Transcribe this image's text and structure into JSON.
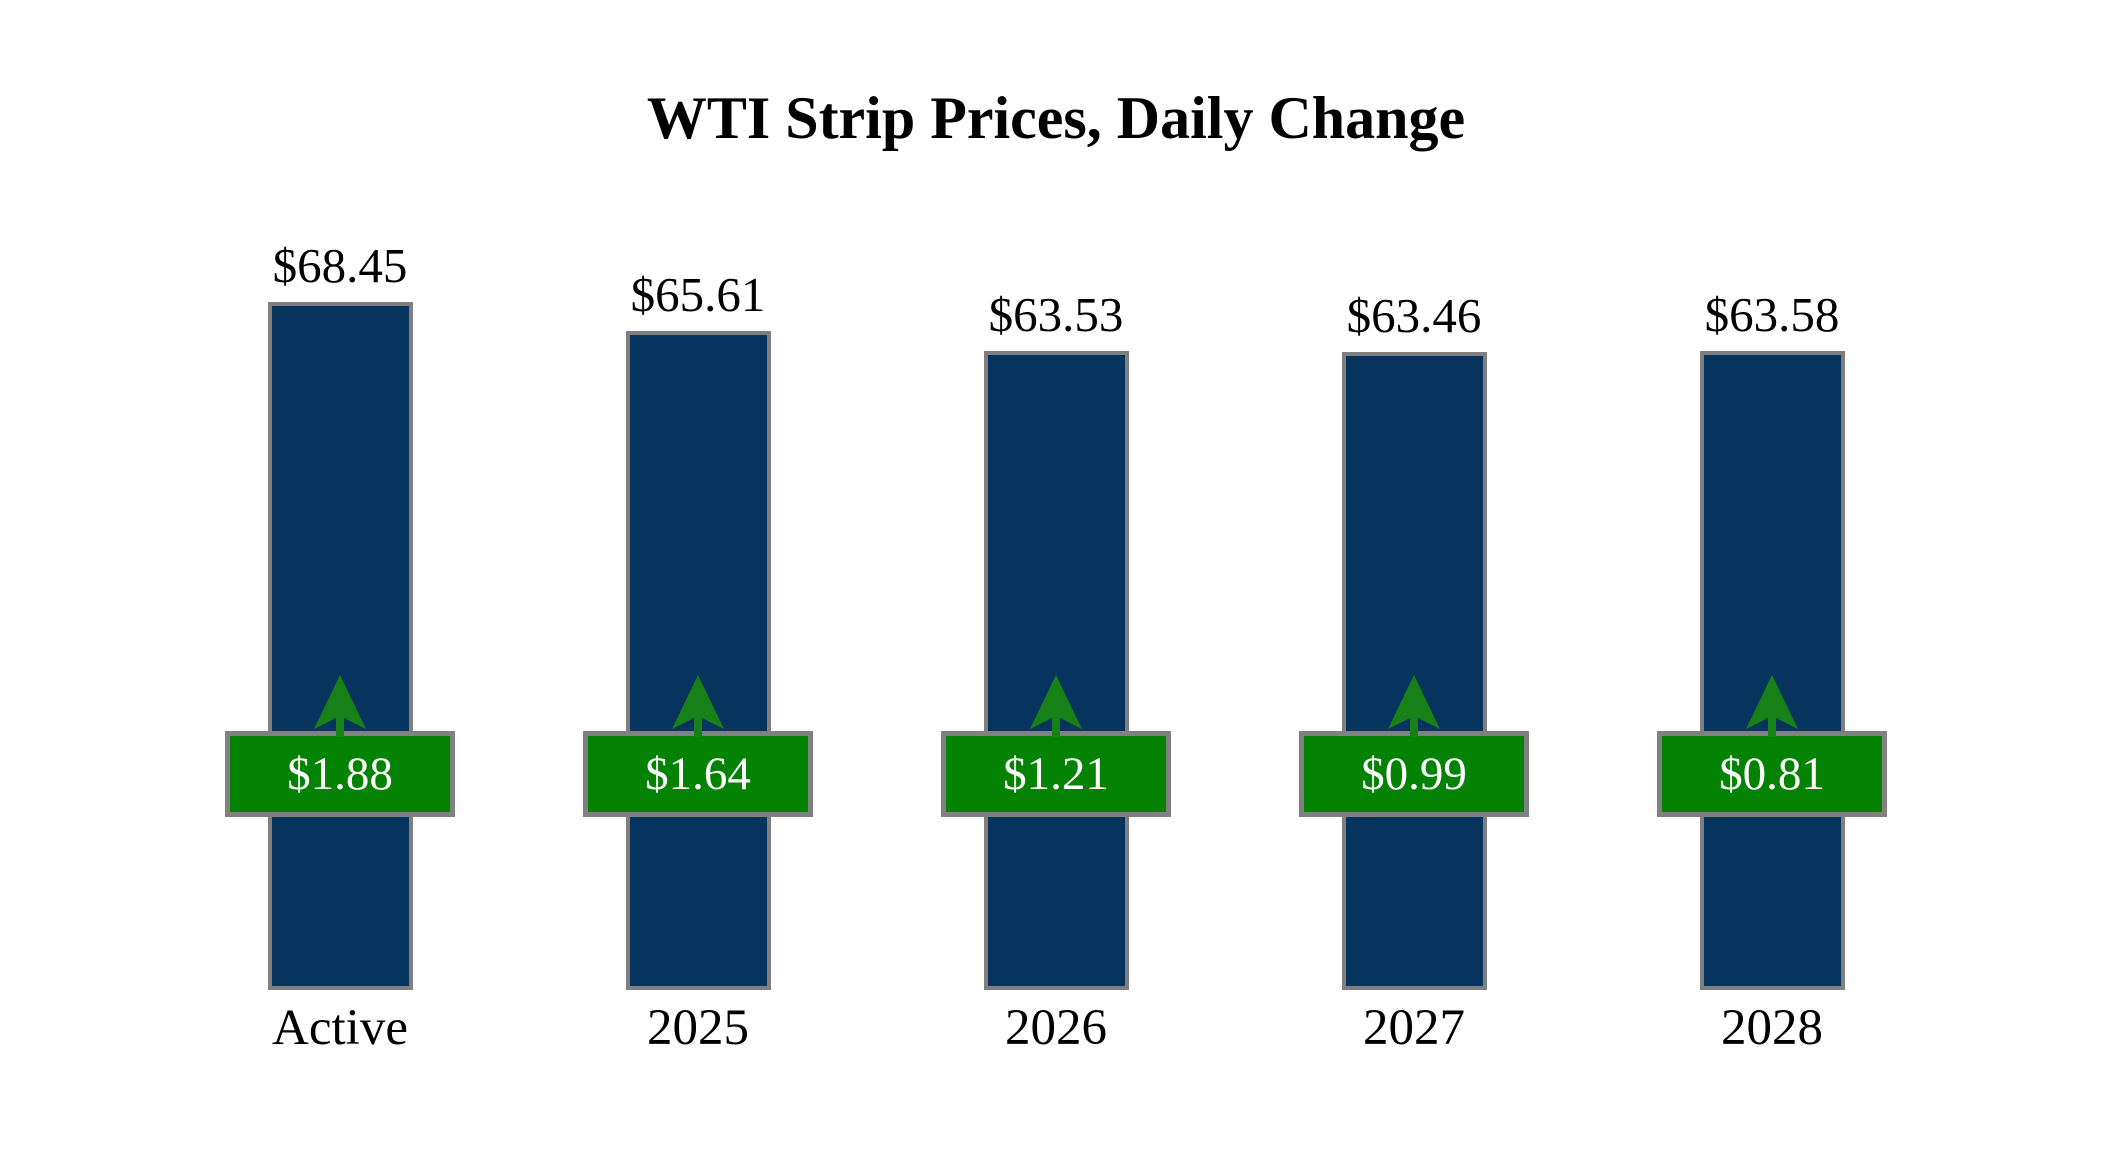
{
  "chart_data": {
    "type": "bar",
    "title": "WTI Strip Prices, Daily Change",
    "categories": [
      "Active",
      "2025",
      "2026",
      "2027",
      "2028"
    ],
    "series": [
      {
        "name": "Strip Price",
        "values": [
          68.45,
          65.61,
          63.53,
          63.46,
          63.58
        ],
        "labels": [
          "$68.45",
          "$65.61",
          "$63.53",
          "$63.46",
          "$63.58"
        ]
      },
      {
        "name": "Daily Change",
        "values": [
          1.88,
          1.64,
          1.21,
          0.99,
          0.81
        ],
        "labels": [
          "$1.88",
          "$1.64",
          "$1.21",
          "$0.99",
          "$0.81"
        ],
        "direction": "up"
      }
    ],
    "ylim": [
      0,
      68.45
    ],
    "grid": false,
    "legend": "none",
    "axis_lines": false,
    "colors": {
      "bar_fill": "#06345f",
      "bar_border": "#7f7f7f",
      "badge_fill": "#048204",
      "badge_border": "#808080",
      "badge_text": "#ffffff",
      "arrow": "#178017",
      "text": "#000000",
      "background": "#ffffff"
    }
  }
}
